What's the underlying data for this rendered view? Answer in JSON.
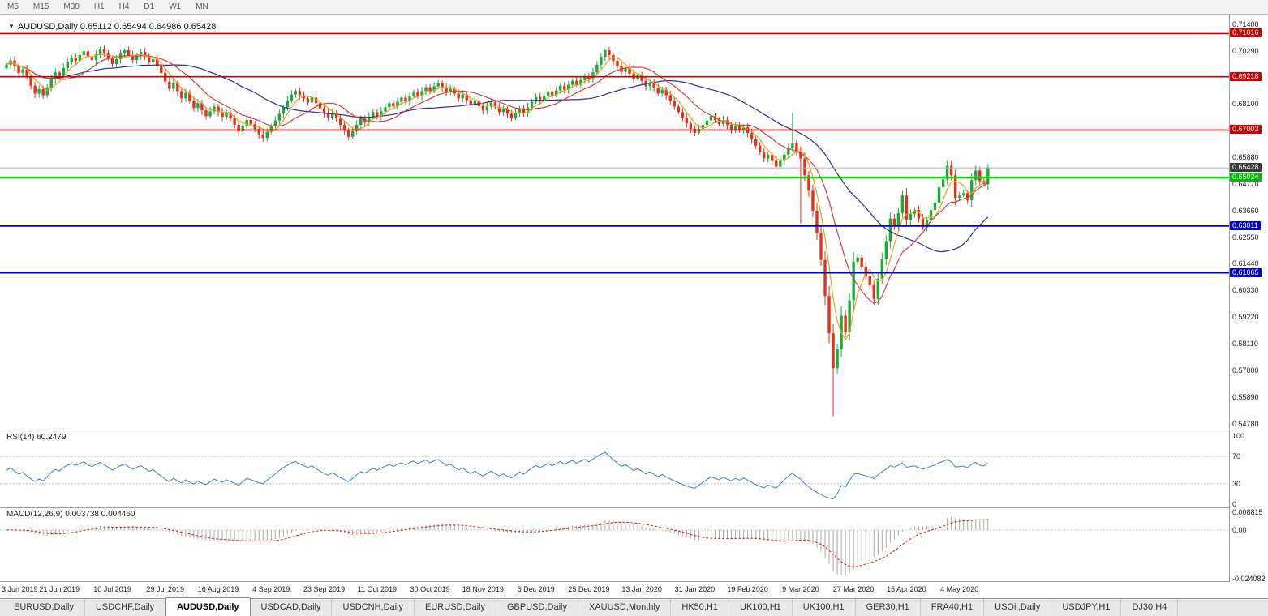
{
  "toolbar": {
    "timeframes": [
      "M5",
      "M15",
      "M30",
      "H1",
      "H4",
      "D1",
      "W1",
      "MN"
    ]
  },
  "tabs": {
    "active_index": 2,
    "items": [
      "EURUSD,Daily",
      "USDCHF,Daily",
      "AUDUSD,Daily",
      "USDCAD,Daily",
      "USDCNH,Daily",
      "EURUSD,Daily",
      "GBPUSD,Daily",
      "XAUUSD,Monthly",
      "HK50,H1",
      "UK100,H1",
      "UK100,H1",
      "GER30,H1",
      "FRA40,H1",
      "USOil,Daily",
      "USDJPY,H1",
      "DJ30,H4"
    ]
  },
  "chart_data": {
    "type": "candlestick",
    "symbol": "AUDUSD",
    "period": "Daily",
    "title": "AUDUSD,Daily 0.65112 0.65494 0.64986 0.65428",
    "ohlc": {
      "open": "0.65112",
      "high": "0.65494",
      "low": "0.64986",
      "close": "0.65428"
    },
    "ylim": [
      0.5478,
      0.714
    ],
    "y_ticks": [
      0.714,
      0.7029,
      0.681,
      0.6588,
      0.6477,
      0.6366,
      0.6255,
      0.6144,
      0.6033,
      0.5922,
      0.5811,
      0.57,
      0.5589,
      0.5478
    ],
    "hlines": [
      {
        "price": 0.71016,
        "color": "#cc0000",
        "width": 1.6,
        "label_bg": "#cc0000",
        "label_fg": "#ffffff"
      },
      {
        "price": 0.69218,
        "color": "#cc0000",
        "width": 1.6,
        "label_bg": "#cc0000",
        "label_fg": "#ffffff"
      },
      {
        "price": 0.67003,
        "color": "#cc0000",
        "width": 1.6,
        "label_bg": "#cc0000",
        "label_fg": "#ffffff"
      },
      {
        "price": 0.65024,
        "color": "#00dd00",
        "width": 2.6,
        "label_bg": "#00bb00",
        "label_fg": "#ffffff"
      },
      {
        "price": 0.63011,
        "color": "#0000cc",
        "width": 1.8,
        "label_bg": "#0000cc",
        "label_fg": "#ffffff"
      },
      {
        "price": 0.61065,
        "color": "#0000cc",
        "width": 1.8,
        "label_bg": "#0000cc",
        "label_fg": "#ffffff"
      }
    ],
    "bid_price": 0.65428,
    "bid_line_color": "#b0b0b0",
    "bid_label_bg": "#3a3a3a",
    "up_color": "#1fa83b",
    "down_color": "#e0321e",
    "x_label_step": 13,
    "x_labels": [
      "3 Jun 2019",
      "21 Jun 2019",
      "10 Jul 2019",
      "29 Jul 2019",
      "16 Aug 2019",
      "4 Sep 2019",
      "23 Sep 2019",
      "11 Oct 2019",
      "30 Oct 2019",
      "18 Nov 2019",
      "6 Dec 2019",
      "25 Dec 2019",
      "13 Jan 2020",
      "31 Jan 2020",
      "19 Feb 2020",
      "9 Mar 2020",
      "27 Mar 2020",
      "15 Apr 2020",
      "4 May 2020"
    ],
    "first_open": 0.6958,
    "closes": [
      0.6972,
      0.699,
      0.6965,
      0.6938,
      0.6952,
      0.692,
      0.6885,
      0.6852,
      0.687,
      0.6845,
      0.6878,
      0.6912,
      0.694,
      0.6925,
      0.6958,
      0.6985,
      0.7002,
      0.6988,
      0.7012,
      0.7028,
      0.7005,
      0.6992,
      0.7015,
      0.7035,
      0.7018,
      0.6998,
      0.6975,
      0.6995,
      0.7018,
      0.7032,
      0.7012,
      0.6992,
      0.701,
      0.7025,
      0.7005,
      0.6982,
      0.6995,
      0.6965,
      0.6938,
      0.6902,
      0.6872,
      0.6895,
      0.6862,
      0.6832,
      0.6855,
      0.6822,
      0.6792,
      0.6812,
      0.6782,
      0.6758,
      0.6778,
      0.6798,
      0.6775,
      0.6755,
      0.6772,
      0.6748,
      0.6722,
      0.6695,
      0.6718,
      0.6742,
      0.6725,
      0.6705,
      0.6682,
      0.6668,
      0.6692,
      0.6715,
      0.674,
      0.6768,
      0.6795,
      0.6822,
      0.6848,
      0.6862,
      0.6845,
      0.6832,
      0.6815,
      0.6835,
      0.6812,
      0.679,
      0.677,
      0.6752,
      0.6772,
      0.6748,
      0.6722,
      0.6698,
      0.6672,
      0.6695,
      0.6722,
      0.6748,
      0.6732,
      0.6755,
      0.6775,
      0.6758,
      0.6778,
      0.6795,
      0.6812,
      0.6798,
      0.6818,
      0.6835,
      0.682,
      0.6842,
      0.6858,
      0.6842,
      0.6862,
      0.6878,
      0.6862,
      0.6882,
      0.6895,
      0.6878,
      0.6858,
      0.6872,
      0.6852,
      0.6832,
      0.6848,
      0.6825,
      0.6805,
      0.6822,
      0.68,
      0.6782,
      0.6798,
      0.6815,
      0.6795,
      0.6775,
      0.6788,
      0.6768,
      0.675,
      0.677,
      0.679,
      0.6772,
      0.6795,
      0.6818,
      0.6838,
      0.6822,
      0.6842,
      0.686,
      0.6845,
      0.6865,
      0.6885,
      0.6868,
      0.6888,
      0.6905,
      0.6888,
      0.6908,
      0.6925,
      0.6912,
      0.694,
      0.6972,
      0.7005,
      0.7032,
      0.7012,
      0.6988,
      0.6965,
      0.6942,
      0.6958,
      0.6935,
      0.6912,
      0.6928,
      0.6905,
      0.6882,
      0.6898,
      0.6875,
      0.6852,
      0.6868,
      0.6845,
      0.6822,
      0.6798,
      0.6775,
      0.6752,
      0.6728,
      0.6705,
      0.6688,
      0.6705,
      0.6722,
      0.674,
      0.6758,
      0.6742,
      0.6725,
      0.6742,
      0.6722,
      0.6702,
      0.6718,
      0.6698,
      0.6712,
      0.6688,
      0.6662,
      0.6635,
      0.6608,
      0.6582,
      0.6598,
      0.6572,
      0.6548,
      0.6572,
      0.6598,
      0.6625,
      0.6648,
      0.6612,
      0.6582,
      0.6512,
      0.6448,
      0.6365,
      0.627,
      0.616,
      0.601,
      0.5855,
      0.571,
      0.5788,
      0.5928,
      0.5862,
      0.5992,
      0.6152,
      0.617,
      0.6132,
      0.6092,
      0.6055,
      0.5998,
      0.6082,
      0.6162,
      0.6238,
      0.6332,
      0.6302,
      0.6355,
      0.6428,
      0.6325,
      0.6352,
      0.6368,
      0.6332,
      0.6295,
      0.6325,
      0.6368,
      0.6398,
      0.6462,
      0.6495,
      0.6552,
      0.6512,
      0.6418,
      0.6428,
      0.6438,
      0.6408,
      0.6492,
      0.6532,
      0.6488,
      0.6475,
      0.65428
    ],
    "high_overrides": {
      "147": 0.704,
      "193": 0.6772,
      "231": 0.6572,
      "241": 0.6558
    },
    "low_overrides": {
      "195": 0.6312,
      "203": 0.551
    },
    "ma": [
      {
        "period": 34,
        "color": "#2b2ba8"
      },
      {
        "period": 13,
        "color": "#d04040"
      },
      {
        "period": 5,
        "color": "#dfa520"
      }
    ],
    "rsi": {
      "label": "RSI(14) 60.2479",
      "period": 14,
      "color": "#4a7eb8",
      "levels": [
        {
          "v": 100,
          "t": "100"
        },
        {
          "v": 70,
          "t": "70"
        },
        {
          "v": 30,
          "t": "30"
        },
        {
          "v": 0,
          "t": "0"
        }
      ],
      "dashed_levels": [
        70,
        30
      ]
    },
    "macd": {
      "label": "MACD(12,26,9) 0.003738 0.004460",
      "fast": 12,
      "slow": 26,
      "signal": 9,
      "hist_color": "#a8a8a8",
      "signal_color": "#cc2222",
      "ylim": [
        -0.024082,
        0.008815
      ],
      "axis": [
        {
          "v": 0.008815,
          "t": "0.008815"
        },
        {
          "v": 0,
          "t": "0.00"
        },
        {
          "v": -0.024082,
          "t": "-0.024082"
        }
      ]
    }
  }
}
